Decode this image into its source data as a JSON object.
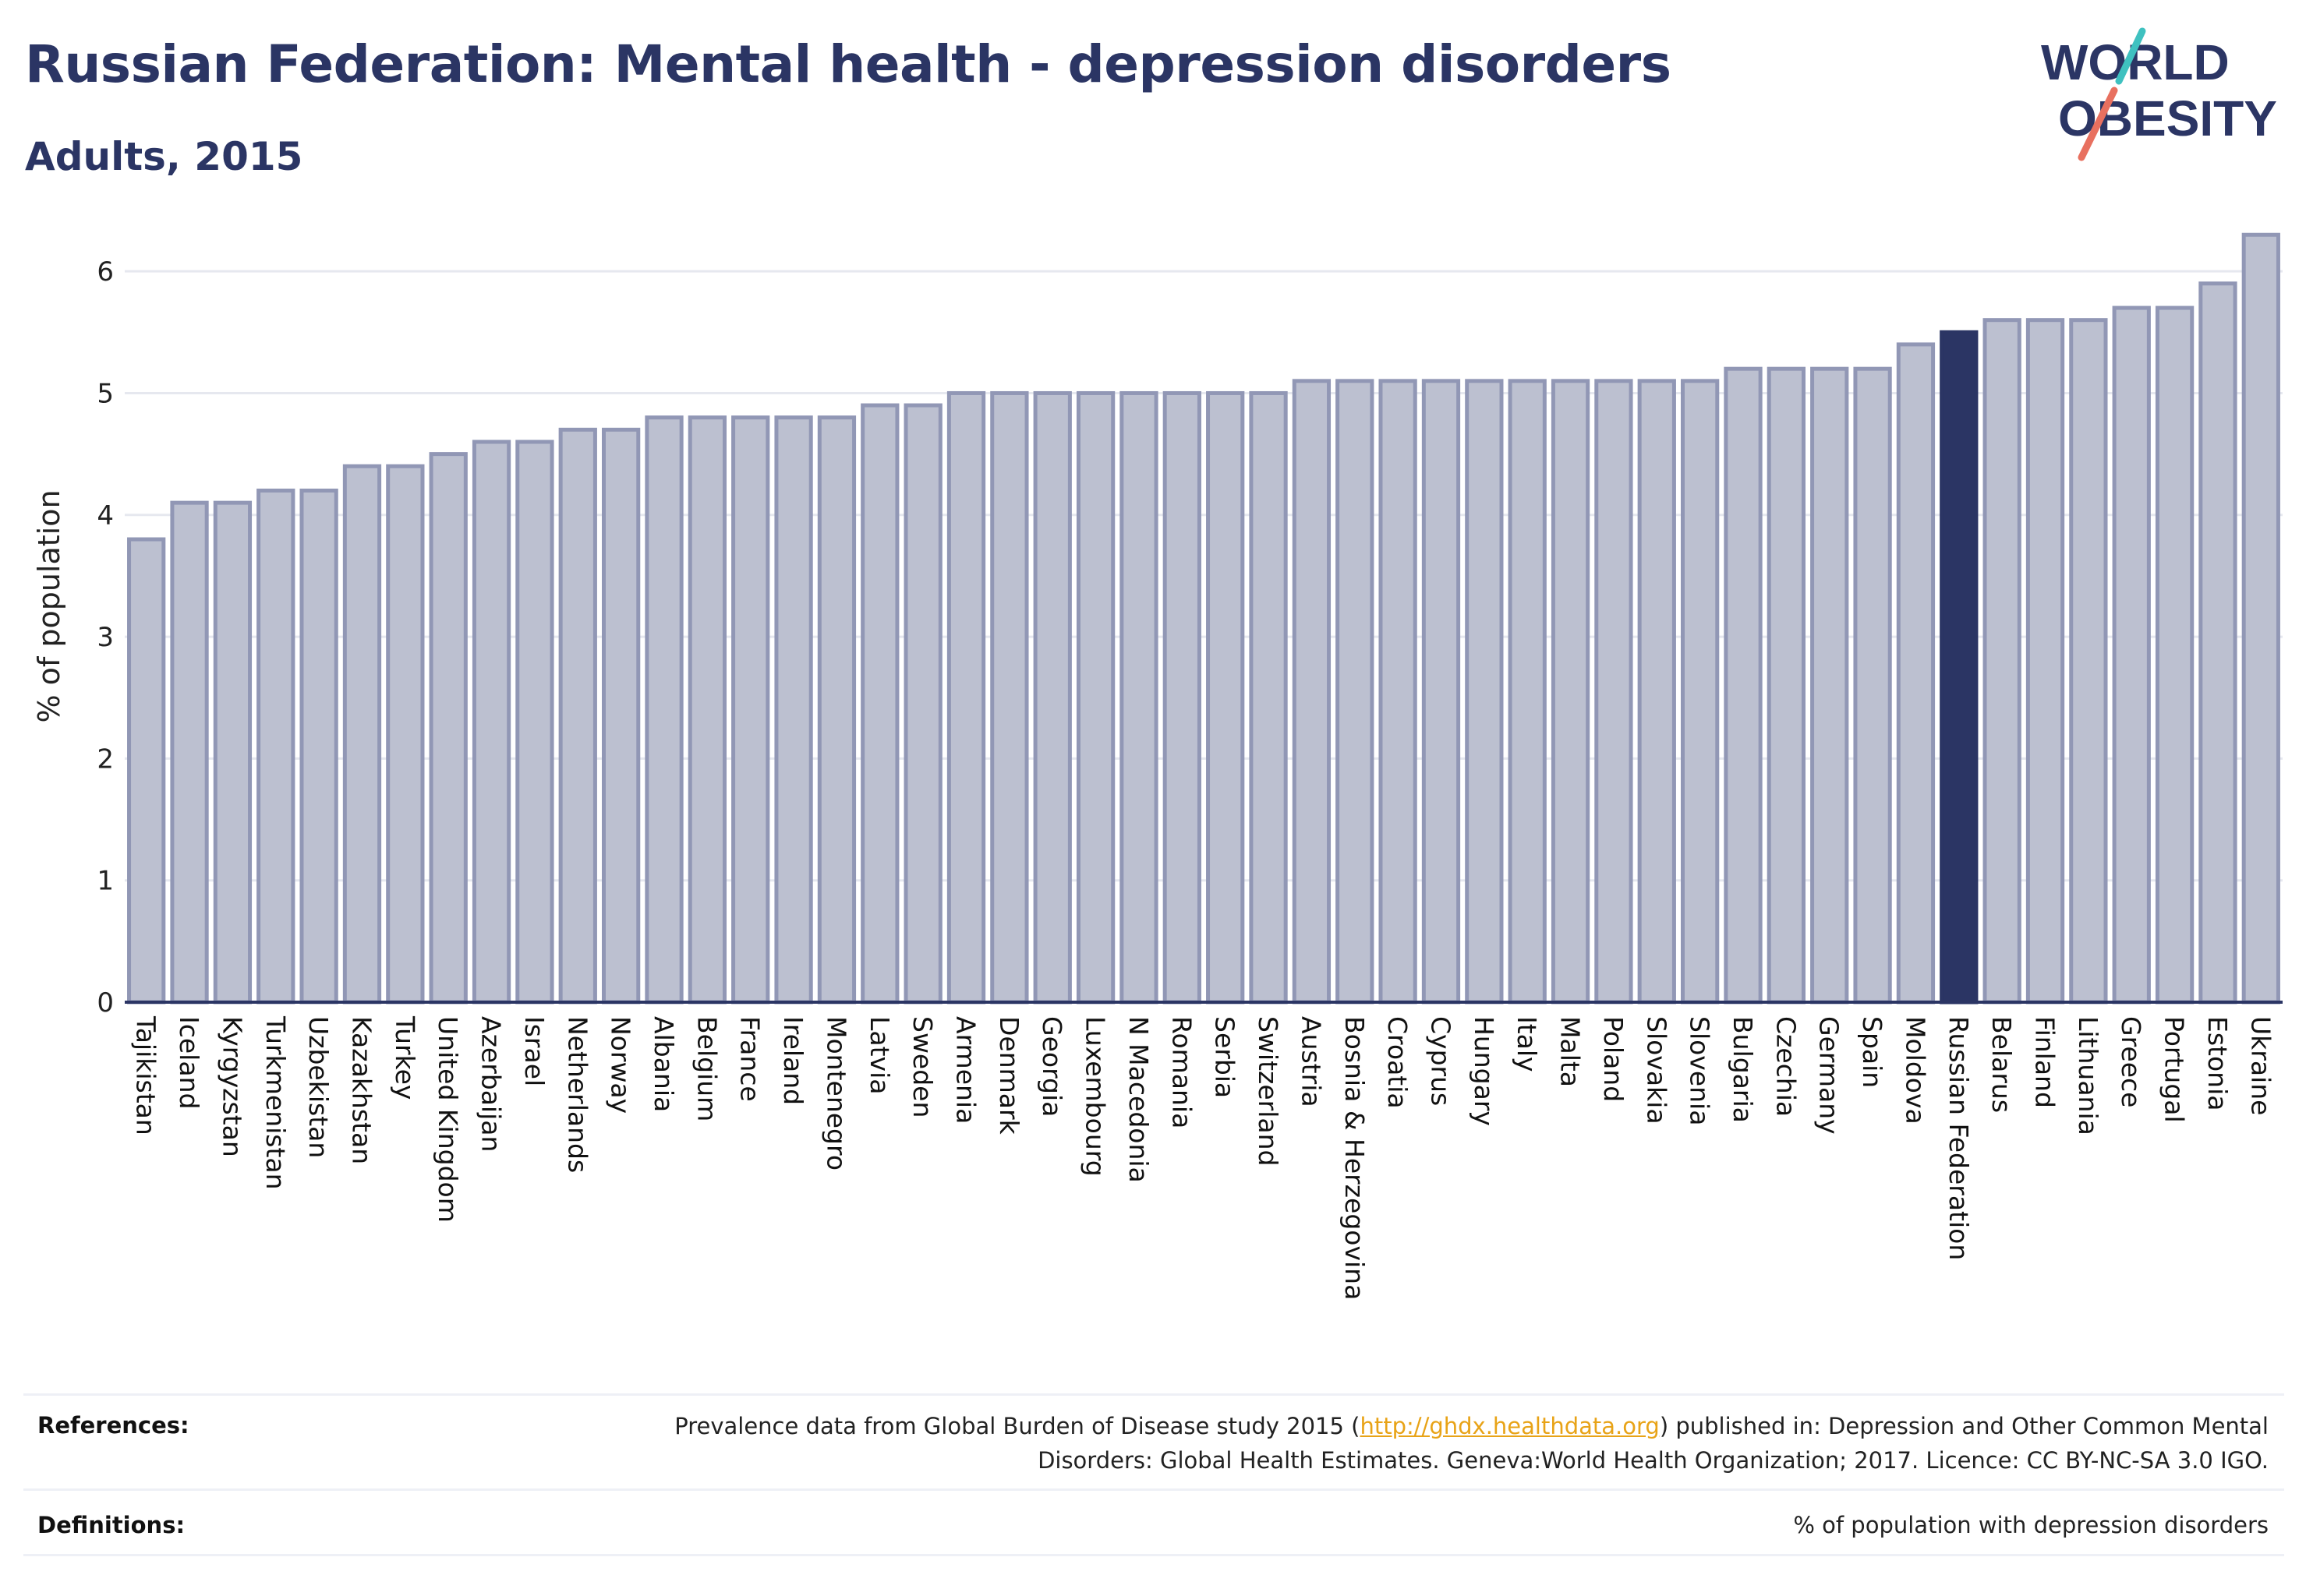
{
  "header": {
    "title": "Russian Federation: Mental health - depression disorders",
    "subtitle": "Adults, 2015"
  },
  "logo": {
    "line1": "WORLD",
    "line2": "OBESITY"
  },
  "colors": {
    "bar_fill": "#bcc0d0",
    "bar_stroke": "#9197b5",
    "highlight": "#2b3564",
    "title": "#2b3564",
    "grid": "#e6e8ef",
    "link": "#e8a317",
    "logo_teal": "#3fc1c0",
    "logo_coral": "#e8705f"
  },
  "chart_data": {
    "type": "bar",
    "ylabel": "% of population",
    "xlabel": "",
    "ylim": [
      0,
      6.5
    ],
    "yticks": [
      0,
      1,
      2,
      3,
      4,
      5,
      6
    ],
    "grid": true,
    "highlight": "Russian Federation",
    "categories": [
      "Tajikistan",
      "Iceland",
      "Kyrgyzstan",
      "Turkmenistan",
      "Uzbekistan",
      "Kazakhstan",
      "Turkey",
      "United Kingdom",
      "Azerbaijan",
      "Israel",
      "Netherlands",
      "Norway",
      "Albania",
      "Belgium",
      "France",
      "Ireland",
      "Montenegro",
      "Latvia",
      "Sweden",
      "Armenia",
      "Denmark",
      "Georgia",
      "Luxembourg",
      "N Macedonia",
      "Romania",
      "Serbia",
      "Switzerland",
      "Austria",
      "Bosnia & Herzegovina",
      "Croatia",
      "Cyprus",
      "Hungary",
      "Italy",
      "Malta",
      "Poland",
      "Slovakia",
      "Slovenia",
      "Bulgaria",
      "Czechia",
      "Germany",
      "Spain",
      "Moldova",
      "Russian Federation",
      "Belarus",
      "Finland",
      "Lithuania",
      "Greece",
      "Portugal",
      "Estonia",
      "Ukraine"
    ],
    "values": [
      3.8,
      4.1,
      4.1,
      4.2,
      4.2,
      4.4,
      4.4,
      4.5,
      4.6,
      4.6,
      4.7,
      4.7,
      4.8,
      4.8,
      4.8,
      4.8,
      4.8,
      4.9,
      4.9,
      5.0,
      5.0,
      5.0,
      5.0,
      5.0,
      5.0,
      5.0,
      5.0,
      5.1,
      5.1,
      5.1,
      5.1,
      5.1,
      5.1,
      5.1,
      5.1,
      5.1,
      5.1,
      5.2,
      5.2,
      5.2,
      5.2,
      5.4,
      5.5,
      5.6,
      5.6,
      5.6,
      5.7,
      5.7,
      5.9,
      6.3
    ]
  },
  "footer": {
    "references_label": "References:",
    "references_pre": "Prevalence data from Global Burden of Disease study 2015 (",
    "references_link": "http://ghdx.healthdata.org",
    "references_post": ") published in: Depression and Other Common Mental Disorders: Global Health Estimates. Geneva:World Health Organization; 2017. Licence: CC BY-NC-SA 3.0 IGO.",
    "definitions_label": "Definitions:",
    "definitions_text": "% of population with depression disorders"
  }
}
